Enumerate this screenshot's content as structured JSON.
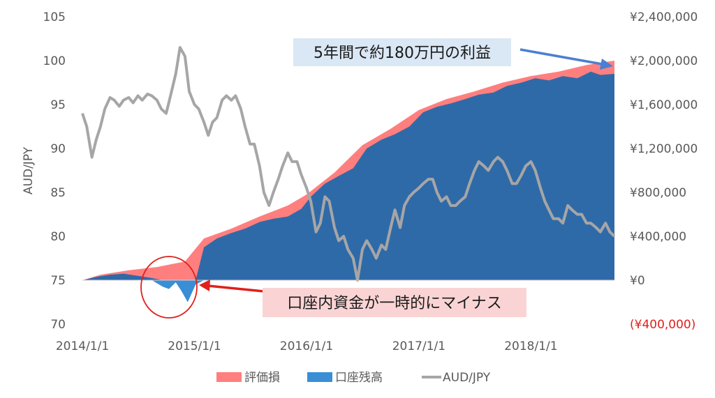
{
  "chart_data": {
    "type": "area",
    "title": "",
    "x_tick_labels": [
      "2014/1/1",
      "2015/1/1",
      "2016/1/1",
      "2017/1/1",
      "2018/1/1"
    ],
    "x_range": [
      "2014-01-01",
      "2018-09-30"
    ],
    "y_left": {
      "label": "AUD/JPY",
      "range": [
        70,
        105
      ],
      "tick_labels": [
        "105",
        "100",
        "95",
        "90",
        "85",
        "80",
        "75",
        "70"
      ]
    },
    "y_right": {
      "range": [
        -400000,
        2400000
      ],
      "tick_labels": [
        "¥2,400,000",
        "¥2,000,000",
        "¥1,600,000",
        "¥1,200,000",
        "¥800,000",
        "¥400,000",
        "¥0",
        "(¥400,000)"
      ],
      "negative_color": "#e0201b"
    },
    "series": [
      {
        "name": "評価損",
        "kind": "area",
        "axis": "right",
        "color": "#ff7f7f",
        "x": [
          "2014-01-01",
          "2014-03-01",
          "2014-06-01",
          "2014-09-01",
          "2014-12-01",
          "2015-02-01",
          "2015-05-01",
          "2015-08-01",
          "2015-11-01",
          "2016-01-01",
          "2016-04-01",
          "2016-07-01",
          "2016-10-01",
          "2017-01-01",
          "2017-04-01",
          "2017-07-01",
          "2017-10-01",
          "2018-01-01",
          "2018-04-01",
          "2018-07-01",
          "2018-09-30"
        ],
        "values": [
          0,
          50000,
          90000,
          120000,
          170000,
          380000,
          470000,
          580000,
          680000,
          780000,
          980000,
          1230000,
          1380000,
          1550000,
          1650000,
          1720000,
          1800000,
          1860000,
          1900000,
          1960000,
          2000000
        ]
      },
      {
        "name": "口座残高",
        "kind": "area",
        "axis": "right",
        "color": "#2f6aa8",
        "negative_color": "#3a8ed6",
        "x": [
          "2014-01-01",
          "2014-02-15",
          "2014-04-01",
          "2014-05-15",
          "2014-07-01",
          "2014-08-15",
          "2014-09-20",
          "2014-10-10",
          "2014-11-01",
          "2014-11-20",
          "2014-12-10",
          "2015-01-05",
          "2015-02-01",
          "2015-03-15",
          "2015-05-01",
          "2015-06-15",
          "2015-08-01",
          "2015-09-15",
          "2015-11-01",
          "2015-12-15",
          "2016-01-15",
          "2016-03-01",
          "2016-04-15",
          "2016-06-01",
          "2016-07-15",
          "2016-09-01",
          "2016-10-15",
          "2016-12-01",
          "2017-01-15",
          "2017-03-01",
          "2017-04-15",
          "2017-06-01",
          "2017-07-15",
          "2017-09-01",
          "2017-10-15",
          "2017-12-01",
          "2018-01-15",
          "2018-03-01",
          "2018-04-15",
          "2018-06-01",
          "2018-07-15",
          "2018-08-15",
          "2018-09-30"
        ],
        "values": [
          0,
          30000,
          50000,
          60000,
          40000,
          20000,
          -60000,
          -80000,
          -20000,
          -100000,
          -200000,
          -40000,
          300000,
          380000,
          430000,
          470000,
          530000,
          560000,
          580000,
          650000,
          760000,
          880000,
          950000,
          1020000,
          1200000,
          1280000,
          1330000,
          1400000,
          1530000,
          1580000,
          1610000,
          1650000,
          1690000,
          1710000,
          1770000,
          1800000,
          1840000,
          1820000,
          1860000,
          1840000,
          1900000,
          1870000,
          1880000
        ]
      },
      {
        "name": "AUD/JPY",
        "kind": "line",
        "axis": "left",
        "color": "#a6a6a6",
        "x": [
          "2014-01-01",
          "2014-01-15",
          "2014-02-01",
          "2014-02-15",
          "2014-03-01",
          "2014-03-15",
          "2014-04-01",
          "2014-04-15",
          "2014-05-01",
          "2014-05-15",
          "2014-06-01",
          "2014-06-15",
          "2014-07-01",
          "2014-07-15",
          "2014-08-01",
          "2014-08-15",
          "2014-09-01",
          "2014-09-15",
          "2014-10-01",
          "2014-10-15",
          "2014-11-01",
          "2014-11-15",
          "2014-12-01",
          "2014-12-15",
          "2015-01-01",
          "2015-01-15",
          "2015-02-01",
          "2015-02-15",
          "2015-03-01",
          "2015-03-15",
          "2015-04-01",
          "2015-04-15",
          "2015-05-01",
          "2015-05-15",
          "2015-06-01",
          "2015-06-15",
          "2015-07-01",
          "2015-07-15",
          "2015-08-01",
          "2015-08-15",
          "2015-09-01",
          "2015-09-15",
          "2015-10-01",
          "2015-10-15",
          "2015-11-01",
          "2015-11-15",
          "2015-12-01",
          "2015-12-15",
          "2016-01-01",
          "2016-01-15",
          "2016-02-01",
          "2016-02-15",
          "2016-03-01",
          "2016-03-15",
          "2016-04-01",
          "2016-04-15",
          "2016-05-01",
          "2016-05-15",
          "2016-06-01",
          "2016-06-15",
          "2016-07-01",
          "2016-07-15",
          "2016-08-01",
          "2016-08-15",
          "2016-09-01",
          "2016-09-15",
          "2016-10-01",
          "2016-10-15",
          "2016-11-01",
          "2016-11-15",
          "2016-12-01",
          "2016-12-15",
          "2017-01-01",
          "2017-01-15",
          "2017-02-01",
          "2017-02-15",
          "2017-03-01",
          "2017-03-15",
          "2017-04-01",
          "2017-04-15",
          "2017-05-01",
          "2017-05-15",
          "2017-06-01",
          "2017-06-15",
          "2017-07-01",
          "2017-07-15",
          "2017-08-01",
          "2017-08-15",
          "2017-09-01",
          "2017-09-15",
          "2017-10-01",
          "2017-10-15",
          "2017-11-01",
          "2017-11-15",
          "2017-12-01",
          "2017-12-15",
          "2018-01-01",
          "2018-01-15",
          "2018-02-01",
          "2018-02-15",
          "2018-03-01",
          "2018-03-15",
          "2018-04-01",
          "2018-04-15",
          "2018-05-01",
          "2018-05-15",
          "2018-06-01",
          "2018-06-15",
          "2018-07-01",
          "2018-07-15",
          "2018-08-01",
          "2018-08-15",
          "2018-09-01",
          "2018-09-15",
          "2018-09-30"
        ],
        "values": [
          94,
          92.5,
          89,
          91,
          92.5,
          94.5,
          95.8,
          95.5,
          94.8,
          95.5,
          95.8,
          95.2,
          96,
          95.5,
          96.2,
          96,
          95.5,
          94.5,
          94,
          96,
          98.5,
          101.5,
          100.5,
          96.5,
          95,
          94.5,
          93,
          91.5,
          93,
          93.5,
          95.5,
          96,
          95.5,
          96,
          94.5,
          92.5,
          90.5,
          90.5,
          88,
          85,
          83.5,
          85,
          86.5,
          88,
          89.5,
          88.5,
          88.5,
          87,
          85.5,
          84,
          80.5,
          81.5,
          84.5,
          84,
          81,
          79.5,
          80,
          78.5,
          77.5,
          75,
          78.5,
          79.5,
          78.5,
          77.5,
          79,
          78.5,
          81,
          83,
          81,
          83.5,
          84.5,
          85,
          85.5,
          86,
          86.5,
          86.5,
          85,
          84,
          84.5,
          83.5,
          83.5,
          84,
          84.5,
          86,
          87.5,
          88.5,
          88,
          87.5,
          88.5,
          89,
          88.5,
          87.5,
          86,
          86,
          87,
          88,
          88.5,
          87.5,
          85.5,
          84,
          83,
          82,
          82,
          81.5,
          83.5,
          83,
          82.5,
          82.5,
          81.5,
          81.5,
          81,
          80.5,
          81.5,
          80.5,
          80
        ]
      }
    ],
    "annotations": [
      {
        "text": "5年間で約180万円の利益",
        "color": "#dae7f4",
        "arrow_color": "#4a7fd1"
      },
      {
        "text": "口座内資金が一時的にマイナス",
        "color": "#fad4d4",
        "arrow_color": "#e0201b"
      }
    ],
    "legend_position": "bottom",
    "grid": false
  }
}
